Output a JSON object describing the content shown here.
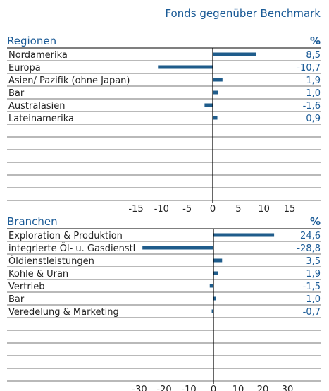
{
  "title": "Fonds gegenüber Benchmark",
  "chart_data": [
    {
      "type": "bar",
      "orientation": "horizontal",
      "title": "Regionen",
      "unit_label": "%",
      "categories": [
        "Nordamerika",
        "Europa",
        "Asien/ Pazifik (ohne Japan)",
        "Bar",
        "Australasien",
        "Lateinamerika"
      ],
      "values": [
        8.5,
        -10.7,
        1.9,
        1.0,
        -1.6,
        0.9
      ],
      "value_labels": [
        "8,5",
        "-10,7",
        "1,9",
        "1,0",
        "-1,6",
        "0,9"
      ],
      "color": "#1f5c8b",
      "xlim": [
        -15,
        15
      ],
      "xticks": [
        -15,
        -10,
        -5,
        0,
        5,
        10,
        15
      ]
    },
    {
      "type": "bar",
      "orientation": "horizontal",
      "title": "Branchen",
      "unit_label": "%",
      "categories": [
        "Exploration & Produktion",
        "integrierte Öl- u. Gasdienstl",
        "Öldienstleistungen",
        "Kohle & Uran",
        "Vertrieb",
        "Bar",
        "Veredelung & Marketing"
      ],
      "values": [
        24.6,
        -28.8,
        3.5,
        1.9,
        -1.5,
        1.0,
        -0.7
      ],
      "value_labels": [
        "24,6",
        "-28,8",
        "3,5",
        "1,9",
        "-1,5",
        "1,0",
        "-0,7"
      ],
      "color": "#1f5c8b",
      "xlim": [
        -30,
        30
      ],
      "xticks": [
        -30,
        -20,
        -10,
        0,
        10,
        20,
        30
      ]
    }
  ]
}
